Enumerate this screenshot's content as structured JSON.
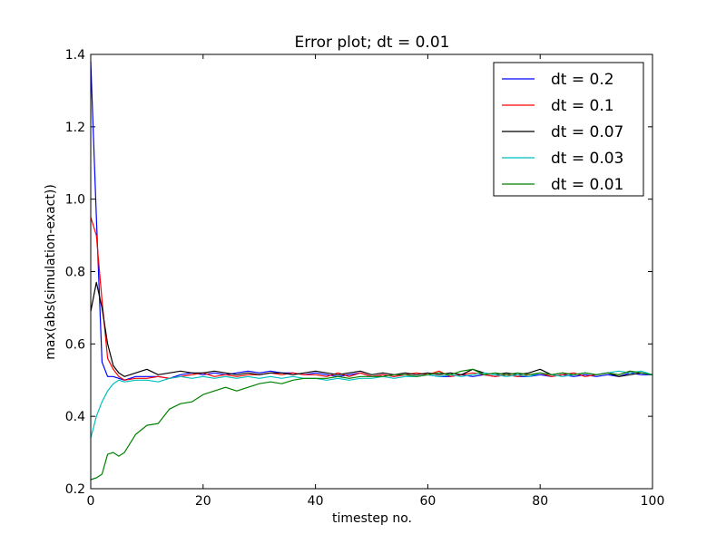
{
  "chart_data": {
    "type": "line",
    "title": "Error plot; dt = 0.01",
    "xlabel": "timestep no.",
    "ylabel": "max(abs(simulation-exact))",
    "xlim": [
      0,
      100
    ],
    "ylim": [
      0.2,
      1.4
    ],
    "x_ticks": [
      0,
      20,
      40,
      60,
      80,
      100
    ],
    "y_ticks": [
      0.2,
      0.4,
      0.6,
      0.8,
      1.0,
      1.2,
      1.4
    ],
    "x_tick_labels": [
      "0",
      "20",
      "40",
      "60",
      "80",
      "100"
    ],
    "y_tick_labels": [
      "0.2",
      "0.4",
      "0.6",
      "0.8",
      "1.0",
      "1.2",
      "1.4"
    ],
    "grid": false,
    "legend_position": "top-right",
    "series": [
      {
        "name": "dt = 0.2",
        "color": "#0000ff",
        "points": [
          [
            0,
            1.38
          ],
          [
            1,
            0.95
          ],
          [
            2,
            0.55
          ],
          [
            3,
            0.51
          ],
          [
            4,
            0.51
          ],
          [
            5,
            0.505
          ],
          [
            6,
            0.5
          ],
          [
            8,
            0.51
          ],
          [
            10,
            0.51
          ],
          [
            12,
            0.51
          ],
          [
            14,
            0.505
          ],
          [
            16,
            0.515
          ],
          [
            18,
            0.52
          ],
          [
            20,
            0.515
          ],
          [
            22,
            0.52
          ],
          [
            24,
            0.515
          ],
          [
            26,
            0.52
          ],
          [
            28,
            0.525
          ],
          [
            30,
            0.52
          ],
          [
            32,
            0.525
          ],
          [
            34,
            0.52
          ],
          [
            36,
            0.52
          ],
          [
            38,
            0.515
          ],
          [
            40,
            0.52
          ],
          [
            42,
            0.515
          ],
          [
            44,
            0.51
          ],
          [
            46,
            0.515
          ],
          [
            48,
            0.52
          ],
          [
            50,
            0.51
          ],
          [
            52,
            0.515
          ],
          [
            54,
            0.51
          ],
          [
            56,
            0.515
          ],
          [
            58,
            0.51
          ],
          [
            60,
            0.515
          ],
          [
            62,
            0.51
          ],
          [
            64,
            0.51
          ],
          [
            66,
            0.515
          ],
          [
            68,
            0.51
          ],
          [
            70,
            0.515
          ],
          [
            72,
            0.51
          ],
          [
            74,
            0.515
          ],
          [
            76,
            0.51
          ],
          [
            78,
            0.51
          ],
          [
            80,
            0.515
          ],
          [
            82,
            0.51
          ],
          [
            84,
            0.515
          ],
          [
            86,
            0.51
          ],
          [
            88,
            0.515
          ],
          [
            90,
            0.51
          ],
          [
            92,
            0.515
          ],
          [
            94,
            0.51
          ],
          [
            96,
            0.52
          ],
          [
            98,
            0.515
          ],
          [
            100,
            0.515
          ]
        ]
      },
      {
        "name": "dt = 0.1",
        "color": "#ff0000",
        "points": [
          [
            0,
            0.95
          ],
          [
            1,
            0.9
          ],
          [
            2,
            0.72
          ],
          [
            3,
            0.56
          ],
          [
            4,
            0.53
          ],
          [
            5,
            0.51
          ],
          [
            6,
            0.5
          ],
          [
            8,
            0.505
          ],
          [
            10,
            0.505
          ],
          [
            12,
            0.51
          ],
          [
            14,
            0.505
          ],
          [
            16,
            0.51
          ],
          [
            18,
            0.515
          ],
          [
            20,
            0.52
          ],
          [
            22,
            0.51
          ],
          [
            24,
            0.515
          ],
          [
            26,
            0.51
          ],
          [
            28,
            0.515
          ],
          [
            30,
            0.515
          ],
          [
            32,
            0.52
          ],
          [
            34,
            0.515
          ],
          [
            36,
            0.52
          ],
          [
            38,
            0.515
          ],
          [
            40,
            0.515
          ],
          [
            42,
            0.51
          ],
          [
            44,
            0.52
          ],
          [
            46,
            0.51
          ],
          [
            48,
            0.52
          ],
          [
            50,
            0.51
          ],
          [
            52,
            0.515
          ],
          [
            54,
            0.51
          ],
          [
            56,
            0.515
          ],
          [
            58,
            0.52
          ],
          [
            60,
            0.515
          ],
          [
            62,
            0.525
          ],
          [
            64,
            0.51
          ],
          [
            66,
            0.515
          ],
          [
            68,
            0.52
          ],
          [
            70,
            0.515
          ],
          [
            72,
            0.51
          ],
          [
            74,
            0.515
          ],
          [
            76,
            0.51
          ],
          [
            78,
            0.515
          ],
          [
            80,
            0.52
          ],
          [
            82,
            0.51
          ],
          [
            84,
            0.515
          ],
          [
            86,
            0.52
          ],
          [
            88,
            0.51
          ],
          [
            90,
            0.515
          ],
          [
            92,
            0.52
          ],
          [
            94,
            0.515
          ],
          [
            96,
            0.525
          ],
          [
            98,
            0.52
          ],
          [
            100,
            0.515
          ]
        ]
      },
      {
        "name": "dt = 0.07",
        "color": "#000000",
        "points": [
          [
            0,
            0.69
          ],
          [
            1,
            0.77
          ],
          [
            2,
            0.7
          ],
          [
            3,
            0.6
          ],
          [
            4,
            0.54
          ],
          [
            5,
            0.52
          ],
          [
            6,
            0.51
          ],
          [
            8,
            0.52
          ],
          [
            10,
            0.53
          ],
          [
            12,
            0.515
          ],
          [
            14,
            0.52
          ],
          [
            16,
            0.525
          ],
          [
            18,
            0.52
          ],
          [
            20,
            0.52
          ],
          [
            22,
            0.525
          ],
          [
            24,
            0.52
          ],
          [
            26,
            0.515
          ],
          [
            28,
            0.52
          ],
          [
            30,
            0.515
          ],
          [
            32,
            0.52
          ],
          [
            34,
            0.52
          ],
          [
            36,
            0.515
          ],
          [
            38,
            0.52
          ],
          [
            40,
            0.525
          ],
          [
            42,
            0.52
          ],
          [
            44,
            0.515
          ],
          [
            46,
            0.52
          ],
          [
            48,
            0.525
          ],
          [
            50,
            0.515
          ],
          [
            52,
            0.52
          ],
          [
            54,
            0.515
          ],
          [
            56,
            0.52
          ],
          [
            58,
            0.515
          ],
          [
            60,
            0.52
          ],
          [
            62,
            0.515
          ],
          [
            64,
            0.52
          ],
          [
            66,
            0.515
          ],
          [
            68,
            0.53
          ],
          [
            70,
            0.52
          ],
          [
            72,
            0.515
          ],
          [
            74,
            0.52
          ],
          [
            76,
            0.515
          ],
          [
            78,
            0.52
          ],
          [
            80,
            0.53
          ],
          [
            82,
            0.515
          ],
          [
            84,
            0.52
          ],
          [
            86,
            0.515
          ],
          [
            88,
            0.52
          ],
          [
            90,
            0.515
          ],
          [
            92,
            0.52
          ],
          [
            94,
            0.51
          ],
          [
            96,
            0.515
          ],
          [
            98,
            0.52
          ],
          [
            100,
            0.515
          ]
        ]
      },
      {
        "name": "dt = 0.03",
        "color": "#00bfbf",
        "points": [
          [
            0,
            0.34
          ],
          [
            1,
            0.4
          ],
          [
            2,
            0.44
          ],
          [
            3,
            0.47
          ],
          [
            4,
            0.49
          ],
          [
            5,
            0.5
          ],
          [
            6,
            0.495
          ],
          [
            8,
            0.5
          ],
          [
            10,
            0.5
          ],
          [
            12,
            0.495
          ],
          [
            14,
            0.505
          ],
          [
            16,
            0.51
          ],
          [
            18,
            0.505
          ],
          [
            20,
            0.51
          ],
          [
            22,
            0.505
          ],
          [
            24,
            0.51
          ],
          [
            26,
            0.505
          ],
          [
            28,
            0.51
          ],
          [
            30,
            0.505
          ],
          [
            32,
            0.51
          ],
          [
            34,
            0.505
          ],
          [
            36,
            0.51
          ],
          [
            38,
            0.505
          ],
          [
            40,
            0.505
          ],
          [
            42,
            0.5
          ],
          [
            44,
            0.505
          ],
          [
            46,
            0.5
          ],
          [
            48,
            0.505
          ],
          [
            50,
            0.505
          ],
          [
            52,
            0.51
          ],
          [
            54,
            0.505
          ],
          [
            56,
            0.51
          ],
          [
            58,
            0.51
          ],
          [
            60,
            0.515
          ],
          [
            62,
            0.51
          ],
          [
            64,
            0.515
          ],
          [
            66,
            0.51
          ],
          [
            68,
            0.515
          ],
          [
            70,
            0.52
          ],
          [
            72,
            0.515
          ],
          [
            74,
            0.51
          ],
          [
            76,
            0.515
          ],
          [
            78,
            0.51
          ],
          [
            80,
            0.52
          ],
          [
            82,
            0.515
          ],
          [
            84,
            0.51
          ],
          [
            86,
            0.515
          ],
          [
            88,
            0.52
          ],
          [
            90,
            0.515
          ],
          [
            92,
            0.52
          ],
          [
            94,
            0.525
          ],
          [
            96,
            0.52
          ],
          [
            98,
            0.525
          ],
          [
            100,
            0.515
          ]
        ]
      },
      {
        "name": "dt = 0.01",
        "color": "#008000",
        "points": [
          [
            0,
            0.225
          ],
          [
            1,
            0.23
          ],
          [
            2,
            0.24
          ],
          [
            3,
            0.295
          ],
          [
            4,
            0.3
          ],
          [
            5,
            0.29
          ],
          [
            6,
            0.3
          ],
          [
            8,
            0.35
          ],
          [
            10,
            0.375
          ],
          [
            12,
            0.38
          ],
          [
            14,
            0.42
          ],
          [
            16,
            0.435
          ],
          [
            18,
            0.44
          ],
          [
            20,
            0.46
          ],
          [
            22,
            0.47
          ],
          [
            24,
            0.48
          ],
          [
            26,
            0.47
          ],
          [
            28,
            0.48
          ],
          [
            30,
            0.49
          ],
          [
            32,
            0.495
          ],
          [
            34,
            0.49
          ],
          [
            36,
            0.5
          ],
          [
            38,
            0.505
          ],
          [
            40,
            0.505
          ],
          [
            42,
            0.505
          ],
          [
            44,
            0.51
          ],
          [
            46,
            0.505
          ],
          [
            48,
            0.51
          ],
          [
            50,
            0.51
          ],
          [
            52,
            0.51
          ],
          [
            54,
            0.515
          ],
          [
            56,
            0.515
          ],
          [
            58,
            0.51
          ],
          [
            60,
            0.515
          ],
          [
            62,
            0.52
          ],
          [
            64,
            0.515
          ],
          [
            66,
            0.525
          ],
          [
            68,
            0.53
          ],
          [
            70,
            0.515
          ],
          [
            72,
            0.52
          ],
          [
            74,
            0.515
          ],
          [
            76,
            0.52
          ],
          [
            78,
            0.515
          ],
          [
            80,
            0.52
          ],
          [
            82,
            0.515
          ],
          [
            84,
            0.52
          ],
          [
            86,
            0.515
          ],
          [
            88,
            0.52
          ],
          [
            90,
            0.515
          ],
          [
            92,
            0.52
          ],
          [
            94,
            0.515
          ],
          [
            96,
            0.525
          ],
          [
            98,
            0.52
          ],
          [
            100,
            0.515
          ]
        ]
      }
    ]
  }
}
